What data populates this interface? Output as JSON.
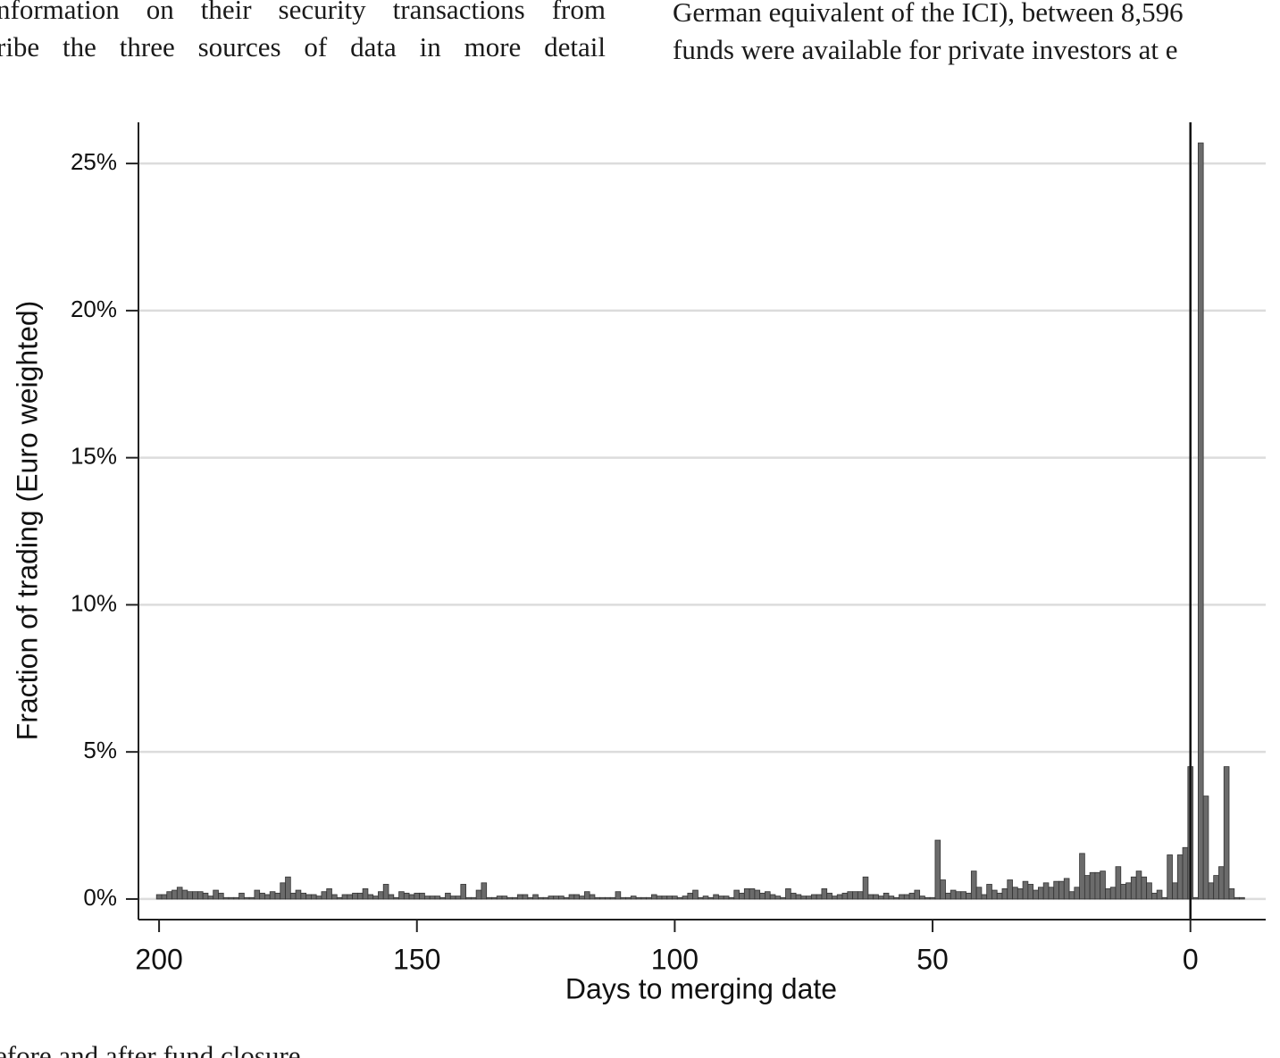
{
  "text_top": {
    "left": [
      "nformation on their security transactions from",
      "ribe the three sources of data in more detail"
    ],
    "right": [
      "German equivalent of the ICI), between 8,596",
      "funds were available for private investors at e"
    ]
  },
  "caption": "efore and after fund closure.",
  "chart_data": {
    "type": "histogram",
    "xlabel": "Days to merging date",
    "ylabel": "Fraction of trading (Euro weighted)",
    "xlim": [
      204,
      -14.6
    ],
    "ylim": [
      -0.7,
      26.4
    ],
    "xticks": [
      200,
      150,
      100,
      50,
      0
    ],
    "yticks": [
      {
        "value": 0,
        "label": "0%"
      },
      {
        "value": 5,
        "label": "5%"
      },
      {
        "value": 10,
        "label": "10%"
      },
      {
        "value": 15,
        "label": "15%"
      },
      {
        "value": 20,
        "label": "20%"
      },
      {
        "value": 25,
        "label": "25%"
      }
    ],
    "grid": true,
    "color": "#6b6b6b",
    "reference_line": 0,
    "bins": [
      200.5,
      199.5,
      198.5,
      197.5,
      196.5,
      195.5,
      194.5,
      193.5,
      192.5,
      191.5,
      190.5,
      189.5,
      188.5,
      187.5,
      186.5,
      185.5,
      184.5,
      183.5,
      182.5,
      181.5,
      180.5,
      179.5,
      178.5,
      177.5,
      176.5,
      175.5,
      174.5,
      173.5,
      172.5,
      171.5,
      170.5,
      169.5,
      168.5,
      167.5,
      166.5,
      165.5,
      164.5,
      163.5,
      162.5,
      161.5,
      160.5,
      159.5,
      158.5,
      157.5,
      156.5,
      155.5,
      154.5,
      153.5,
      152.5,
      151.5,
      150.5,
      149.5,
      148.5,
      147.5,
      146.5,
      145.5,
      144.5,
      143.5,
      142.5,
      141.5,
      140.5,
      139.5,
      138.5,
      137.5,
      136.5,
      135.5,
      134.5,
      133.5,
      132.5,
      131.5,
      130.5,
      129.5,
      128.5,
      127.5,
      126.5,
      125.5,
      124.5,
      123.5,
      122.5,
      121.5,
      120.5,
      119.5,
      118.5,
      117.5,
      116.5,
      115.5,
      114.5,
      113.5,
      112.5,
      111.5,
      110.5,
      109.5,
      108.5,
      107.5,
      106.5,
      105.5,
      104.5,
      103.5,
      102.5,
      101.5,
      100.5,
      99.5,
      98.5,
      97.5,
      96.5,
      95.5,
      94.5,
      93.5,
      92.5,
      91.5,
      90.5,
      89.5,
      88.5,
      87.5,
      86.5,
      85.5,
      84.5,
      83.5,
      82.5,
      81.5,
      80.5,
      79.5,
      78.5,
      77.5,
      76.5,
      75.5,
      74.5,
      73.5,
      72.5,
      71.5,
      70.5,
      69.5,
      68.5,
      67.5,
      66.5,
      65.5,
      64.5,
      63.5,
      62.5,
      61.5,
      60.5,
      59.5,
      58.5,
      57.5,
      56.5,
      55.5,
      54.5,
      53.5,
      52.5,
      51.5,
      50.5,
      49.5,
      48.5,
      47.5,
      46.5,
      45.5,
      44.5,
      43.5,
      42.5,
      41.5,
      40.5,
      39.5,
      38.5,
      37.5,
      36.5,
      35.5,
      34.5,
      33.5,
      32.5,
      31.5,
      30.5,
      29.5,
      28.5,
      27.5,
      26.5,
      25.5,
      24.5,
      23.5,
      22.5,
      21.5,
      20.5,
      19.5,
      18.5,
      17.5,
      16.5,
      15.5,
      14.5,
      13.5,
      12.5,
      11.5,
      10.5,
      9.5,
      8.5,
      7.5,
      6.5,
      5.5,
      4.5,
      3.5,
      2.5,
      1.5,
      0.5,
      -0.5,
      -1.5,
      -2.5,
      -3.5,
      -4.5,
      -5.5,
      -6.5,
      -7.5,
      -8.5,
      -9.5,
      -10.5
    ],
    "values": [
      0.15,
      0.15,
      0.25,
      0.3,
      0.4,
      0.3,
      0.25,
      0.25,
      0.25,
      0.2,
      0.1,
      0.3,
      0.2,
      0.05,
      0.05,
      0.05,
      0.2,
      0.05,
      0.05,
      0.3,
      0.2,
      0.15,
      0.25,
      0.2,
      0.55,
      0.75,
      0.2,
      0.3,
      0.2,
      0.15,
      0.15,
      0.1,
      0.25,
      0.35,
      0.15,
      0.05,
      0.15,
      0.15,
      0.2,
      0.2,
      0.35,
      0.15,
      0.1,
      0.25,
      0.5,
      0.15,
      0.05,
      0.25,
      0.2,
      0.15,
      0.2,
      0.2,
      0.1,
      0.1,
      0.1,
      0.05,
      0.2,
      0.1,
      0.1,
      0.5,
      0.05,
      0.05,
      0.3,
      0.55,
      0.05,
      0.05,
      0.1,
      0.1,
      0.05,
      0.05,
      0.15,
      0.15,
      0.05,
      0.15,
      0.05,
      0.05,
      0.1,
      0.1,
      0.1,
      0.05,
      0.15,
      0.15,
      0.1,
      0.25,
      0.15,
      0.05,
      0.05,
      0.05,
      0.05,
      0.25,
      0.05,
      0.05,
      0.1,
      0.05,
      0.05,
      0.05,
      0.15,
      0.1,
      0.1,
      0.1,
      0.1,
      0.05,
      0.1,
      0.2,
      0.3,
      0.05,
      0.1,
      0.05,
      0.15,
      0.1,
      0.1,
      0.05,
      0.3,
      0.2,
      0.35,
      0.35,
      0.3,
      0.2,
      0.25,
      0.15,
      0.1,
      0.05,
      0.35,
      0.2,
      0.15,
      0.1,
      0.1,
      0.15,
      0.15,
      0.35,
      0.2,
      0.1,
      0.15,
      0.2,
      0.25,
      0.25,
      0.25,
      0.75,
      0.15,
      0.15,
      0.1,
      0.2,
      0.1,
      0.05,
      0.15,
      0.15,
      0.2,
      0.3,
      0.1,
      0.05,
      0.05,
      2.0,
      0.65,
      0.2,
      0.3,
      0.25,
      0.25,
      0.2,
      0.95,
      0.4,
      0.15,
      0.5,
      0.3,
      0.2,
      0.35,
      0.65,
      0.4,
      0.35,
      0.6,
      0.5,
      0.3,
      0.4,
      0.55,
      0.4,
      0.6,
      0.6,
      0.7,
      0.25,
      0.4,
      1.55,
      0.8,
      0.9,
      0.9,
      0.95,
      0.35,
      0.4,
      1.1,
      0.5,
      0.55,
      0.75,
      0.95,
      0.75,
      0.55,
      0.2,
      0.3,
      0.05,
      1.5,
      0.55,
      1.5,
      1.75,
      4.5,
      0.05,
      25.7,
      3.5,
      0.55,
      0.8,
      1.1,
      4.5,
      0.35,
      0.05,
      0.05
    ]
  }
}
